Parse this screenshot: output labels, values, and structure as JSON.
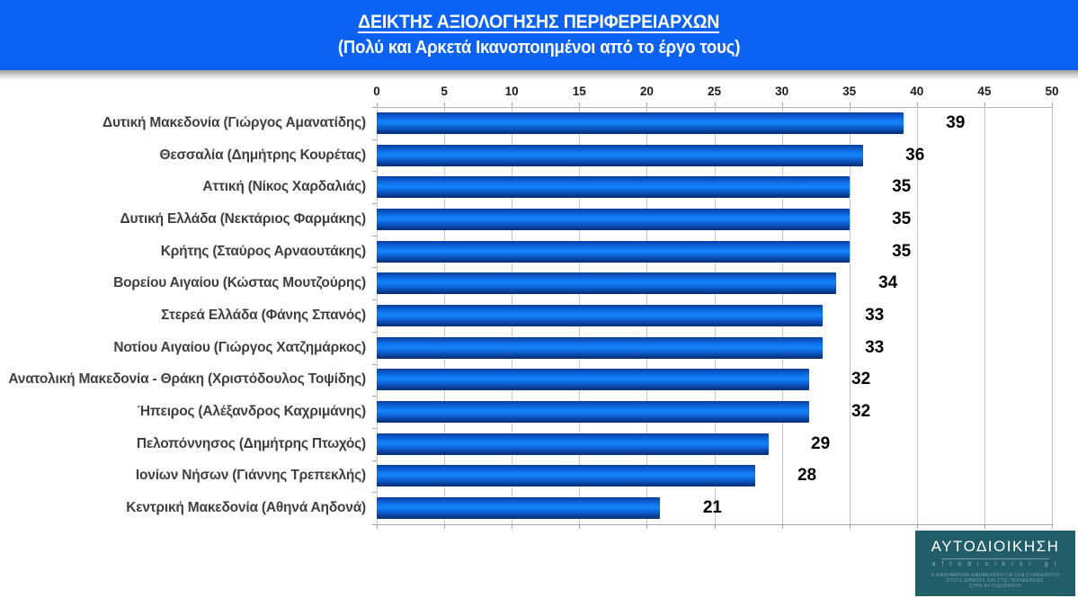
{
  "header": {
    "title": "ΔΕΙΚΤΗΣ ΑΞΙΟΛΟΓΗΣΗΣ ΠΕΡΙΦΕΡΕΙΑΡΧΩΝ",
    "subtitle": "(Πολύ και Αρκετά Ικανοποιημένοι από το έργο τους)",
    "background_color": "#0b62f2",
    "text_color": "#ffffff"
  },
  "chart_data": {
    "type": "bar",
    "orientation": "horizontal",
    "title": "ΔΕΙΚΤΗΣ ΑΞΙΟΛΟΓΗΣΗΣ ΠΕΡΙΦΕΡΕΙΑΡΧΩΝ",
    "subtitle": "(Πολύ και Αρκετά Ικανοποιημένοι από το έργο τους)",
    "categories": [
      "Δυτική Μακεδονία (Γιώργος Αμανατίδης)",
      "Θεσσαλία (Δημήτρης Κουρέτας)",
      "Αττική (Νίκος Χαρδαλιάς)",
      "Δυτική Ελλάδα (Νεκτάριος Φαρμάκης)",
      "Κρήτης (Σταύρος Αρναουτάκης)",
      "Βορείου Αιγαίου (Κώστας Μουτζούρης)",
      "Στερεά Ελλάδα (Φάνης Σπανός)",
      "Νοτίου Αιγαίου (Γιώργος Χατζημάρκος)",
      "Ανατολική Μακεδονία - Θράκη (Χριστόδουλος Τοψίδης)",
      "Ήπειρος (Αλέξανδρος Καχριμάνης)",
      "Πελοπόννησος (Δημήτρης Πτωχός)",
      "Ιονίων Νήσων (Γιάννης Τρεπεκλής)",
      "Κεντρική Μακεδονία (Αθηνά Αηδονά)"
    ],
    "values": [
      39,
      36,
      35,
      35,
      35,
      34,
      33,
      33,
      32,
      32,
      29,
      28,
      21
    ],
    "xlim": [
      0,
      50
    ],
    "x_ticks": [
      0,
      5,
      10,
      15,
      20,
      25,
      30,
      35,
      40,
      45,
      50
    ],
    "grid": true,
    "value_labels_position": "outside-end",
    "bar_color_main": "#1485fb",
    "bar_color_dark": "#06307a",
    "gridline_color": "#c2c5c9",
    "category_label_color": "#3f3f3f",
    "value_label_color": "#000000"
  },
  "logo": {
    "name": "ΑΥΤΟΔΙΟΙΚΗΣΗ",
    "site": "a f t o d i o i k i s i . g r",
    "fineprint": [
      "Η ΚΑΘΗΜΕΡΙΝΗ ΕΝΗΜΕΡΩΣΗ ΓΙΑ ΟΣΑ ΣΥΜΒΑΙΝΟΥΝ",
      "ΣΤΟΥΣ ΔΗΜΟΥΣ ΚΑΙ ΣΤΙΣ ΠΕΡΙΦΕΡΕΙΕΣ",
      "ΣΤΗΝ ΑΥΤΟΔΙΟΙΚΗΣΗ"
    ],
    "background_color": "#215e6a"
  }
}
